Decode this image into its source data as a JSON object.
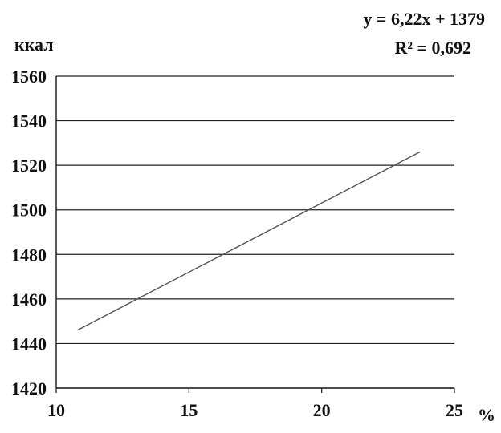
{
  "chart_data": {
    "type": "line",
    "title": "",
    "xlabel": "%",
    "ylabel": "ккал",
    "xlim": [
      10,
      25
    ],
    "ylim": [
      1420,
      1560
    ],
    "xticks": [
      "10",
      "15",
      "20",
      "25"
    ],
    "yticks": [
      "1560",
      "1540",
      "1520",
      "1500",
      "1480",
      "1460",
      "1440",
      "1420"
    ],
    "grid": "horizontal",
    "series": [
      {
        "x": [
          10.8,
          23.7
        ],
        "y": [
          1446,
          1526
        ],
        "color": "#555555"
      }
    ],
    "annotations": [
      "y = 6,22x + 1379",
      "R² = 0,692"
    ]
  }
}
